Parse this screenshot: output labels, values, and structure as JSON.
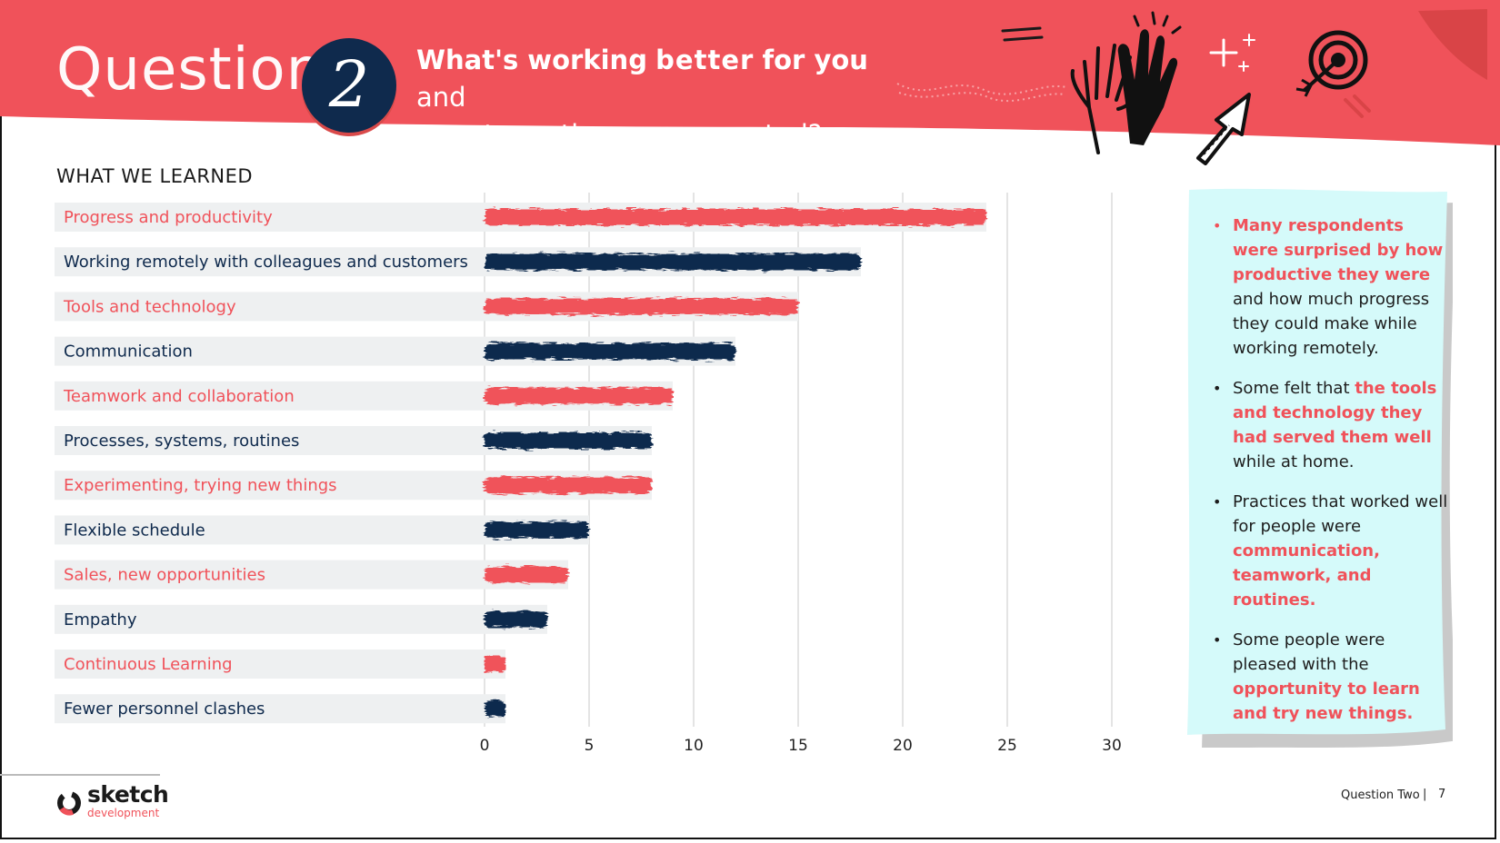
{
  "header": {
    "question_word": "Question",
    "question_number": "2",
    "question_text_bold_1": "What's working",
    "question_text_highlight": "better",
    "question_text_bold_2": "for you",
    "question_text_rest_1": "and",
    "question_text_rest_2": "your team than you expected?"
  },
  "section_title": "WHAT WE LEARNED",
  "colors": {
    "accent_red": "#f0525a",
    "navy": "#0f2a4d",
    "note_bg": "#d5fafa",
    "row_bg": "#eef0f1"
  },
  "chart_data": {
    "type": "bar",
    "orientation": "horizontal",
    "title": "",
    "xlabel": "",
    "ylabel": "",
    "xlim": [
      0,
      30
    ],
    "xticks": [
      0,
      5,
      10,
      15,
      20,
      25,
      30
    ],
    "grid": true,
    "categories": [
      "Progress and productivity",
      "Working remotely with colleagues and customers",
      "Tools and technology",
      "Communication",
      "Teamwork and collaboration",
      "Processes, systems, routines",
      "Experimenting, trying new things",
      "Flexible schedule",
      "Sales, new opportunities",
      "Empathy",
      "Continuous Learning",
      "Fewer personnel clashes"
    ],
    "values": [
      24,
      18,
      15,
      12,
      9,
      8,
      8,
      5,
      4,
      3,
      1,
      1
    ],
    "bar_colors": [
      "red",
      "navy",
      "red",
      "navy",
      "red",
      "navy",
      "red",
      "navy",
      "red",
      "navy",
      "red",
      "navy"
    ]
  },
  "notes": [
    {
      "parts": [
        {
          "t": "Many respondents were surprised by how productive they were",
          "hl": true
        },
        {
          "t": " and how much progress they could make while working remotely.",
          "hl": false
        }
      ],
      "dot": "red"
    },
    {
      "parts": [
        {
          "t": "Some felt that ",
          "hl": false
        },
        {
          "t": "the tools and technology they had served them well",
          "hl": true
        },
        {
          "t": " while at home.",
          "hl": false
        }
      ],
      "dot": "dark"
    },
    {
      "parts": [
        {
          "t": "Practices that worked well for people were ",
          "hl": false
        },
        {
          "t": "communication, teamwork, and routines.",
          "hl": true
        }
      ],
      "dot": "dark"
    },
    {
      "parts": [
        {
          "t": "Some people were pleased with the ",
          "hl": false
        },
        {
          "t": "opportunity to learn and try new things.",
          "hl": true
        }
      ],
      "dot": "dark"
    }
  ],
  "footer": {
    "logo_word": "sketch",
    "logo_sub": "development",
    "label": "Question Two",
    "separator": "|",
    "page": "7"
  }
}
